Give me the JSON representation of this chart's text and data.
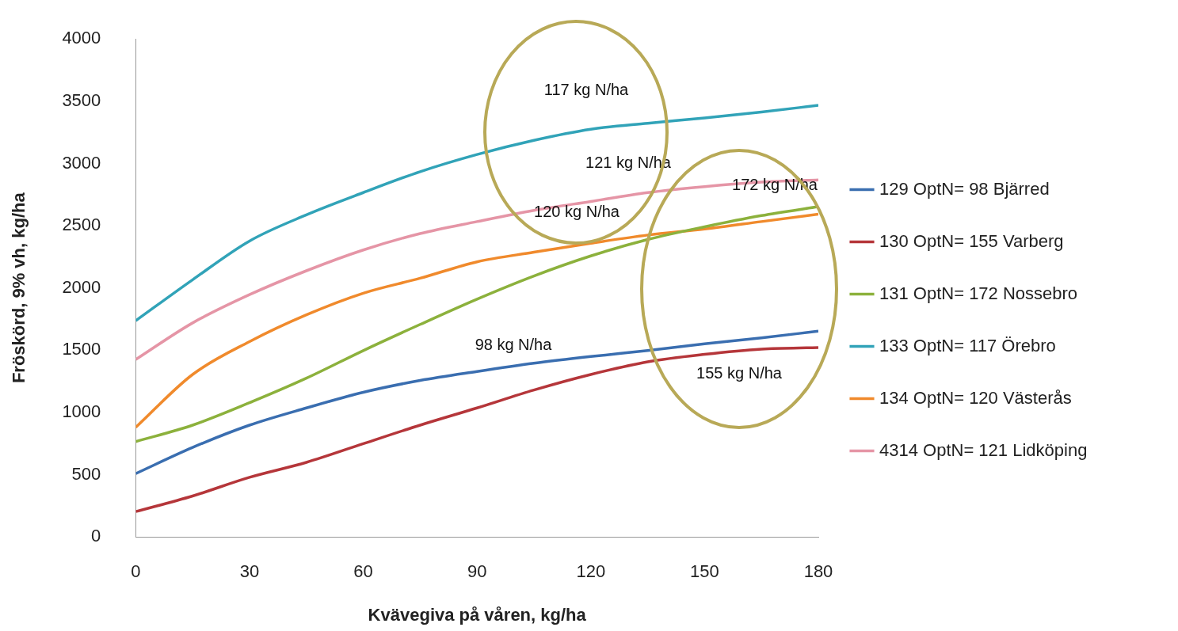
{
  "chart_data": {
    "type": "line",
    "xlabel": "Kvävegiva på våren, kg/ha",
    "ylabel": "Fröskörd, 9% vh, kg/ha",
    "x": [
      0,
      15,
      30,
      45,
      60,
      75,
      90,
      105,
      120,
      135,
      150,
      165,
      180
    ],
    "xlim": [
      0,
      180
    ],
    "xticks": [
      0,
      30,
      60,
      90,
      120,
      150,
      180
    ],
    "ylim": [
      0,
      4000
    ],
    "yticks": [
      0,
      500,
      1000,
      1500,
      2000,
      2500,
      3000,
      3500,
      4000
    ],
    "grid": false,
    "legend": "right",
    "marker": "none",
    "line_style": "solid",
    "series": [
      {
        "name": "129 OptN= 98 Bjärred",
        "color": "#3a6eb0",
        "values": [
          509,
          719,
          898,
          1036,
          1162,
          1257,
          1329,
          1395,
          1449,
          1497,
          1551,
          1599,
          1653
        ]
      },
      {
        "name": "130 OptN= 155 Varberg",
        "color": "#b5363a",
        "values": [
          204,
          329,
          479,
          599,
          749,
          898,
          1036,
          1180,
          1305,
          1407,
          1467,
          1509,
          1521
        ]
      },
      {
        "name": "131 OptN= 172 Nossebro",
        "color": "#8cb13c",
        "values": [
          766,
          898,
          1078,
          1275,
          1497,
          1707,
          1910,
          2096,
          2257,
          2389,
          2491,
          2581,
          2653
        ]
      },
      {
        "name": "133 OptN= 117 Örebro",
        "color": "#31a3b8",
        "values": [
          1737,
          2066,
          2377,
          2587,
          2766,
          2934,
          3072,
          3186,
          3275,
          3323,
          3365,
          3413,
          3467
        ]
      },
      {
        "name": "134 OptN= 120 Västerås",
        "color": "#f08a2c",
        "values": [
          880,
          1305,
          1569,
          1784,
          1958,
          2078,
          2210,
          2287,
          2359,
          2425,
          2473,
          2533,
          2593
        ]
      },
      {
        "name": "4314 OptN= 121 Lidköping",
        "color": "#e595a6",
        "values": [
          1425,
          1719,
          1946,
          2138,
          2305,
          2437,
          2533,
          2623,
          2695,
          2766,
          2814,
          2850,
          2868
        ]
      }
    ],
    "annotations": [
      "117 kg N/ha",
      "121 kg N/ha",
      "172 kg N/ha",
      "120 kg N/ha",
      "98 kg N/ha",
      "155 kg N/ha"
    ]
  }
}
